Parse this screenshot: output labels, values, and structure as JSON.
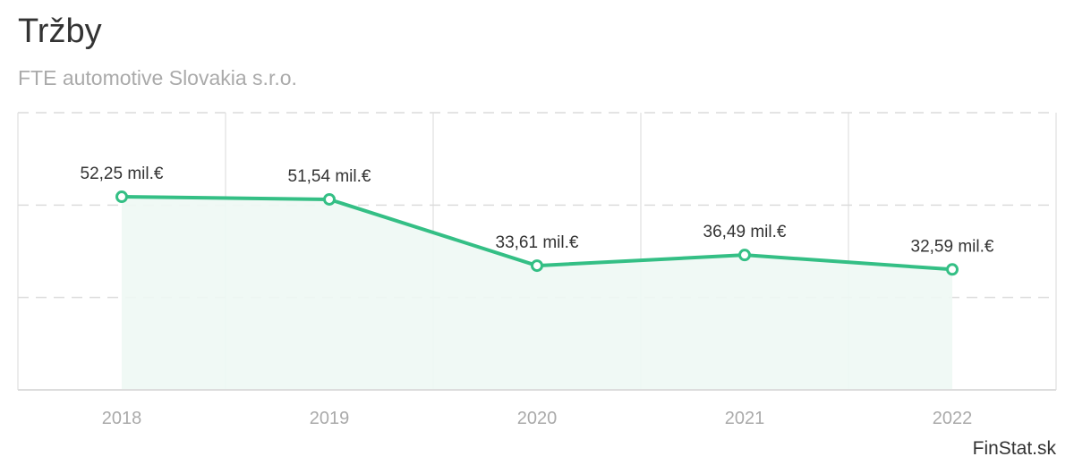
{
  "header": {
    "title": "Tržby",
    "subtitle": "FTE automotive Slovakia s.r.o."
  },
  "credit": "FinStat.sk",
  "colors": {
    "line": "#34bf85",
    "fill": "#eef8f4",
    "grid": "#e2e2e2"
  },
  "chart_data": {
    "type": "area",
    "title": "Tržby",
    "subtitle": "FTE automotive Slovakia s.r.o.",
    "categories": [
      "2018",
      "2019",
      "2020",
      "2021",
      "2022"
    ],
    "values": [
      52.25,
      51.54,
      33.61,
      36.49,
      32.59
    ],
    "data_labels": [
      "52,25 mil.€",
      "51,54 mil.€",
      "33,61 mil.€",
      "36,49 mil.€",
      "32,59 mil.€"
    ],
    "unit": "mil.€",
    "ylim": [
      0,
      75
    ],
    "yticks": [
      25,
      50,
      75
    ],
    "grid": true,
    "legend": "none"
  }
}
